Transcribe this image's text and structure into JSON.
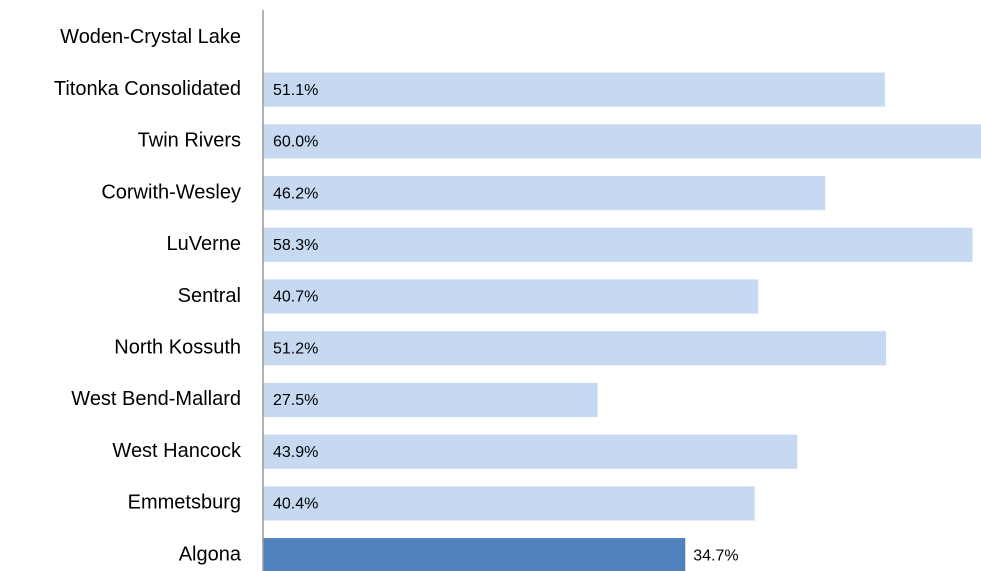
{
  "chart_data": {
    "type": "barh",
    "categories": [
      "Woden-Crystal Lake",
      "Titonka Consolidated",
      "Twin Rivers",
      "Corwith-Wesley",
      "LuVerne",
      "Sentral",
      "North Kossuth",
      "West Bend-Mallard",
      "West Hancock",
      "Emmetsburg",
      "Algona"
    ],
    "values": [
      null,
      51.1,
      60.0,
      46.2,
      58.3,
      40.7,
      51.2,
      27.5,
      43.9,
      40.4,
      34.7
    ],
    "value_labels": [
      null,
      "51.1%",
      "60.0%",
      "46.2%",
      "58.3%",
      "40.7%",
      "51.2%",
      "27.5%",
      "43.9%",
      "40.4%",
      "34.7%"
    ],
    "color": "#c6d9f1",
    "colors": [
      "#c6d9f1",
      "#c6d9f1",
      "#c6d9f1",
      "#c6d9f1",
      "#c6d9f1",
      "#c6d9f1",
      "#c6d9f1",
      "#c6d9f1",
      "#c6d9f1",
      "#c6d9f1",
      "#4f81bd"
    ],
    "xlim": [
      0,
      59
    ]
  }
}
